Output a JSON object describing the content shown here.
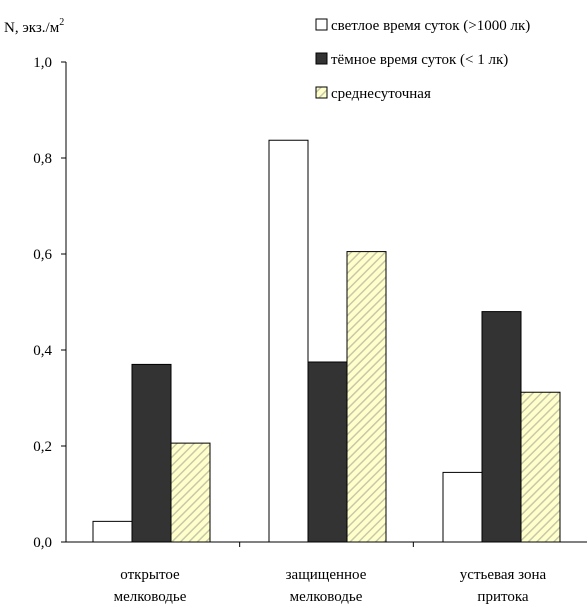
{
  "chart_data": {
    "type": "bar",
    "ylabel": "N, экз./м",
    "ylabel_superscript": "2",
    "ylim": [
      0,
      1.0
    ],
    "yticks": [
      "0,0",
      "0,2",
      "0,4",
      "0,6",
      "0,8",
      "1,0"
    ],
    "grid": false,
    "legend_position": "top-right",
    "categories": [
      [
        "открытое",
        "мелководье"
      ],
      [
        "защищенное",
        "мелководье"
      ],
      [
        "устьевая зона",
        "притока"
      ]
    ],
    "series": [
      {
        "name": "светлое время суток (>1000 лк)",
        "values": [
          0.043,
          0.837,
          0.145
        ],
        "fill": "white"
      },
      {
        "name": "тёмное время суток (< 1 лк)",
        "values": [
          0.37,
          0.375,
          0.48
        ],
        "fill": "dark"
      },
      {
        "name": "среднесуточная",
        "values": [
          0.206,
          0.605,
          0.312
        ],
        "fill": "hatched"
      }
    ],
    "colors": {
      "dark": "#333333",
      "hatch_bg": "#ffffcc",
      "hatch_line": "#c8c8a8",
      "outline": "#000000"
    }
  }
}
